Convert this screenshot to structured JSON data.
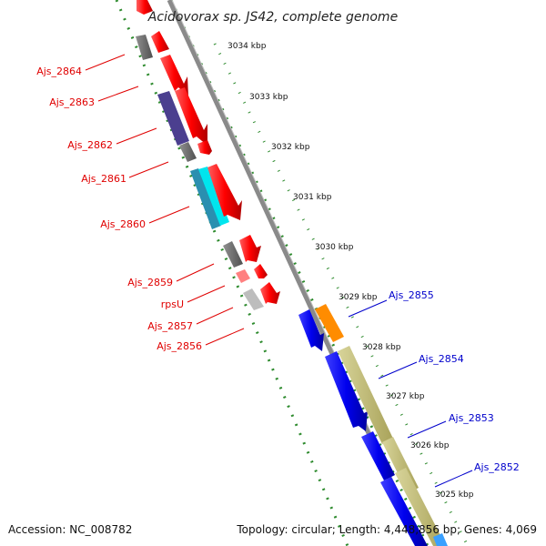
{
  "title": "Acidovorax sp. JS42, complete genome",
  "footer": {
    "accession": "Accession: NC_008782",
    "topology": "Topology: circular; Length: 4,448,856 bp; Genes: 4,069"
  },
  "ticks": [
    "3034 kbp",
    "3033 kbp",
    "3032 kbp",
    "3031 kbp",
    "3030 kbp",
    "3029 kbp",
    "3028 kbp",
    "3027 kbp",
    "3026 kbp",
    "3025 kbp"
  ],
  "genes_left": [
    {
      "name": "Ajs_2864",
      "color": "#e00000"
    },
    {
      "name": "Ajs_2863",
      "color": "#e00000"
    },
    {
      "name": "Ajs_2862",
      "color": "#e00000"
    },
    {
      "name": "Ajs_2861",
      "color": "#e00000"
    },
    {
      "name": "Ajs_2860",
      "color": "#e00000"
    },
    {
      "name": "Ajs_2859",
      "color": "#e00000"
    },
    {
      "name": "rpsU",
      "color": "#e00000"
    },
    {
      "name": "Ajs_2857",
      "color": "#e00000"
    },
    {
      "name": "Ajs_2856",
      "color": "#e00000"
    }
  ],
  "genes_right": [
    {
      "name": "Ajs_2855",
      "color": "#0000cc"
    },
    {
      "name": "Ajs_2854",
      "color": "#0000cc"
    },
    {
      "name": "Ajs_2853",
      "color": "#0000cc"
    },
    {
      "name": "Ajs_2852",
      "color": "#0000cc"
    }
  ],
  "colors": {
    "forward_cds": "#ff0000",
    "reverse_cds": "#0000ee",
    "backbone": "#888888",
    "gc_dots": "#2e8b2e",
    "cog_gray": "#666666",
    "cog_purple": "#4b3f8f",
    "cog_cyan": "#00e5ee",
    "cog_orange": "#ff8c00",
    "cog_khaki": "#bdb76b"
  }
}
